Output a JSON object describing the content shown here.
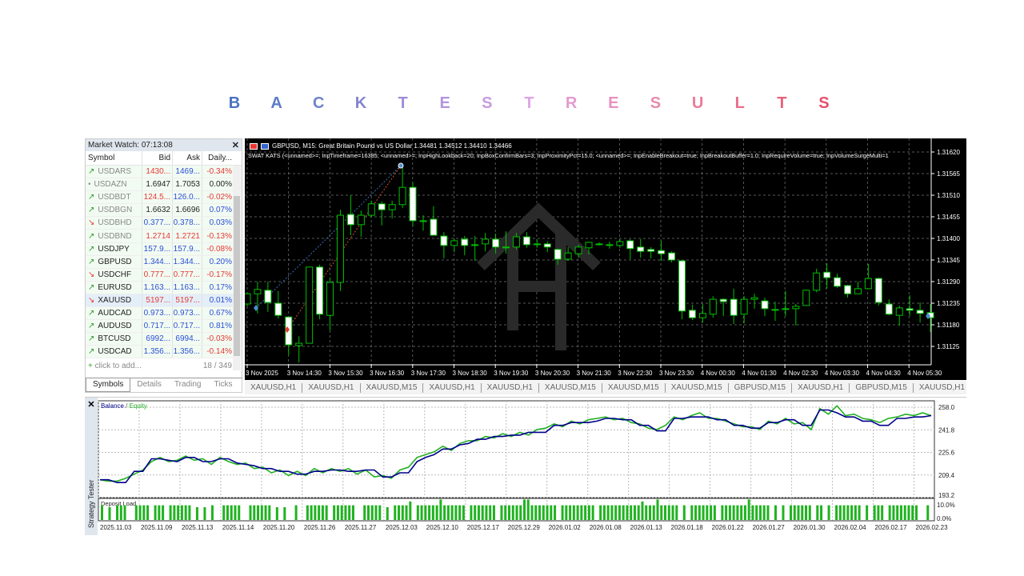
{
  "title": {
    "letters": [
      "B",
      "A",
      "C",
      "K",
      "T",
      "E",
      "S",
      "T",
      "R",
      "E",
      "S",
      "U",
      "L",
      "T",
      "S"
    ],
    "colors": [
      "#4a72c0",
      "#5a7cc8",
      "#6f84cc",
      "#8385d0",
      "#9c8cd6",
      "#b295dc",
      "#c99ae0",
      "#dea4e6",
      "#e39ad0",
      "#e792c0",
      "#e98aae",
      "#ea7c9c",
      "#ea6e8a",
      "#e8607a",
      "#e6506a"
    ]
  },
  "market_watch": {
    "title": "Market Watch: 07:13:08",
    "columns": [
      "Symbol",
      "Bid",
      "Ask",
      "Daily..."
    ],
    "rows": [
      {
        "dir": "up",
        "symbol": "USDARS",
        "bid": "1430...",
        "ask": "1469...",
        "daily": "-0.34%",
        "bid_color": "#e53935",
        "ask_color": "#2a4fd6",
        "daily_color": "#e53935",
        "dim": true
      },
      {
        "dir": "flat",
        "symbol": "USDAZN",
        "bid": "1.6947",
        "ask": "1.7053",
        "daily": "0.00%",
        "bid_color": "#222",
        "ask_color": "#222",
        "daily_color": "#222",
        "dim": true
      },
      {
        "dir": "up",
        "symbol": "USDBDT",
        "bid": "124.5...",
        "ask": "126.0...",
        "daily": "-0.02%",
        "bid_color": "#e53935",
        "ask_color": "#2a4fd6",
        "daily_color": "#e53935",
        "dim": true
      },
      {
        "dir": "up",
        "symbol": "USDBGN",
        "bid": "1.6632",
        "ask": "1.6696",
        "daily": "0.07%",
        "bid_color": "#222",
        "ask_color": "#222",
        "daily_color": "#2a4fd6",
        "dim": true
      },
      {
        "dir": "down",
        "symbol": "USDBHD",
        "bid": "0.377...",
        "ask": "0.378...",
        "daily": "0.03%",
        "bid_color": "#2a4fd6",
        "ask_color": "#2a4fd6",
        "daily_color": "#2a4fd6",
        "dim": true
      },
      {
        "dir": "up",
        "symbol": "USDBND",
        "bid": "1.2714",
        "ask": "1.2721",
        "daily": "-0.13%",
        "bid_color": "#e53935",
        "ask_color": "#e53935",
        "daily_color": "#e53935",
        "dim": true
      },
      {
        "dir": "up",
        "symbol": "USDJPY",
        "bid": "157.9...",
        "ask": "157.9...",
        "daily": "-0.08%",
        "bid_color": "#2a4fd6",
        "ask_color": "#2a4fd6",
        "daily_color": "#e53935"
      },
      {
        "dir": "up",
        "symbol": "GBPUSD",
        "bid": "1.344...",
        "ask": "1.344...",
        "daily": "0.20%",
        "bid_color": "#2a4fd6",
        "ask_color": "#2a4fd6",
        "daily_color": "#2a4fd6"
      },
      {
        "dir": "down",
        "symbol": "USDCHF",
        "bid": "0.777...",
        "ask": "0.777...",
        "daily": "-0.17%",
        "bid_color": "#e53935",
        "ask_color": "#e53935",
        "daily_color": "#e53935"
      },
      {
        "dir": "up",
        "symbol": "EURUSD",
        "bid": "1.163...",
        "ask": "1.163...",
        "daily": "0.17%",
        "bid_color": "#2a4fd6",
        "ask_color": "#2a4fd6",
        "daily_color": "#2a4fd6"
      },
      {
        "dir": "down",
        "symbol": "XAUUSD",
        "bid": "5197...",
        "ask": "5197...",
        "daily": "0.01%",
        "bid_color": "#e53935",
        "ask_color": "#e53935",
        "daily_color": "#2a4fd6",
        "selected": true
      },
      {
        "dir": "up",
        "symbol": "AUDCAD",
        "bid": "0.973...",
        "ask": "0.973...",
        "daily": "0.67%",
        "bid_color": "#2a4fd6",
        "ask_color": "#2a4fd6",
        "daily_color": "#2a4fd6"
      },
      {
        "dir": "up",
        "symbol": "AUDUSD",
        "bid": "0.717...",
        "ask": "0.717...",
        "daily": "0.81%",
        "bid_color": "#2a4fd6",
        "ask_color": "#2a4fd6",
        "daily_color": "#2a4fd6"
      },
      {
        "dir": "up",
        "symbol": "BTCUSD",
        "bid": "6992...",
        "ask": "6994...",
        "daily": "-0.03%",
        "bid_color": "#2a4fd6",
        "ask_color": "#2a4fd6",
        "daily_color": "#e53935"
      },
      {
        "dir": "up",
        "symbol": "USDCAD",
        "bid": "1.356...",
        "ask": "1.356...",
        "daily": "-0.14%",
        "bid_color": "#2a4fd6",
        "ask_color": "#2a4fd6",
        "daily_color": "#e53935"
      }
    ],
    "add_label": "click to add...",
    "count": "18 / 349",
    "tabs": [
      "Symbols",
      "Details",
      "Trading",
      "Ticks"
    ]
  },
  "chart": {
    "header": "GBPUSD, M15:  Great Britain Pound vs US Dollar  1.34481 1.34512 1.34410 1.34466",
    "ea_line": "SWAT KATS (<unnamed>=; InpTimeframe=16385; <unnamed>=; InpHighLookback=20; InpBoxConfirmBars=3; InpProximityPct=15.0; <unnamed>=; InpEnableBreakout=true; InpBreakoutBuffer=1.0; InpRequireVolume=true; InpVolumeSurgeMulti=1",
    "price_ticks": [
      "1.31620",
      "1.31565",
      "1.31510",
      "1.31455",
      "1.31400",
      "1.31345",
      "1.31290",
      "1.31235",
      "1.31180",
      "1.31125"
    ],
    "time_ticks": [
      "3 Nov 2025",
      "3 Nov 14:30",
      "3 Nov 15:30",
      "3 Nov 16:30",
      "3 Nov 17:30",
      "3 Nov 18:30",
      "3 Nov 19:30",
      "3 Nov 20:30",
      "3 Nov 21:30",
      "3 Nov 22:30",
      "3 Nov 23:30",
      "4 Nov 00:30",
      "4 Nov 01:30",
      "4 Nov 02:30",
      "4 Nov 03:30",
      "4 Nov 04:30",
      "4 Nov 05:30"
    ],
    "bull_color": "#00c000",
    "bear_fill": "#ffffff",
    "candles": [
      [
        1.31233,
        1.31263,
        1.31227,
        1.31259
      ],
      [
        1.31259,
        1.3129,
        1.31209,
        1.3127
      ],
      [
        1.31268,
        1.3129,
        1.31213,
        1.31237
      ],
      [
        1.31235,
        1.31266,
        1.31196,
        1.31204
      ],
      [
        1.312,
        1.312,
        1.31103,
        1.31129
      ],
      [
        1.31127,
        1.31151,
        1.31084,
        1.31133
      ],
      [
        1.31133,
        1.31327,
        1.31133,
        1.31327
      ],
      [
        1.31327,
        1.31333,
        1.31194,
        1.31207
      ],
      [
        1.31204,
        1.313,
        1.31166,
        1.31288
      ],
      [
        1.31288,
        1.31473,
        1.31266,
        1.31459
      ],
      [
        1.31461,
        1.3151,
        1.31408,
        1.31435
      ],
      [
        1.31435,
        1.31471,
        1.31404,
        1.31459
      ],
      [
        1.31459,
        1.31496,
        1.31453,
        1.31488
      ],
      [
        1.31488,
        1.31494,
        1.31433,
        1.31473
      ],
      [
        1.31473,
        1.31496,
        1.31451,
        1.31486
      ],
      [
        1.31486,
        1.31585,
        1.31477,
        1.3153
      ],
      [
        1.3153,
        1.31543,
        1.31431,
        1.31445
      ],
      [
        1.31445,
        1.31459,
        1.3142,
        1.31445
      ],
      [
        1.31449,
        1.31482,
        1.31408,
        1.31408
      ],
      [
        1.31406,
        1.31416,
        1.31349,
        1.31382
      ],
      [
        1.31382,
        1.314,
        1.31365,
        1.31394
      ],
      [
        1.31398,
        1.31406,
        1.31357,
        1.31382
      ],
      [
        1.31384,
        1.31406,
        1.31343,
        1.31384
      ],
      [
        1.31386,
        1.31414,
        1.31367,
        1.31398
      ],
      [
        1.31398,
        1.31412,
        1.31361,
        1.31378
      ],
      [
        1.31378,
        1.31418,
        1.31361,
        1.31378
      ],
      [
        1.31378,
        1.31414,
        1.31372,
        1.31404
      ],
      [
        1.31404,
        1.31416,
        1.31376,
        1.31384
      ],
      [
        1.31386,
        1.31398,
        1.31376,
        1.31386
      ],
      [
        1.31386,
        1.31392,
        1.31365,
        1.31378
      ],
      [
        1.31372,
        1.31374,
        1.31333,
        1.31347
      ],
      [
        1.31347,
        1.31378,
        1.31343,
        1.31363
      ],
      [
        1.31361,
        1.31384,
        1.31351,
        1.31378
      ],
      [
        1.31376,
        1.31392,
        1.31359,
        1.3139
      ],
      [
        1.31386,
        1.3139,
        1.31382,
        1.31386
      ],
      [
        1.31384,
        1.31392,
        1.31374,
        1.31384
      ],
      [
        1.31382,
        1.31398,
        1.31376,
        1.31392
      ],
      [
        1.31394,
        1.31398,
        1.31347,
        1.31374
      ],
      [
        1.31378,
        1.31398,
        1.31351,
        1.31367
      ],
      [
        1.31372,
        1.31378,
        1.31349,
        1.31367
      ],
      [
        1.31369,
        1.31394,
        1.31343,
        1.31361
      ],
      [
        1.31363,
        1.31367,
        1.31339,
        1.31345
      ],
      [
        1.31343,
        1.31343,
        1.31194,
        1.31215
      ],
      [
        1.31217,
        1.31231,
        1.31192,
        1.31198
      ],
      [
        1.31198,
        1.31233,
        1.31186,
        1.31209
      ],
      [
        1.31207,
        1.31253,
        1.31198,
        1.31245
      ],
      [
        1.31245,
        1.31247,
        1.31202,
        1.31239
      ],
      [
        1.31245,
        1.31272,
        1.31182,
        1.31204
      ],
      [
        1.31207,
        1.31253,
        1.31184,
        1.31245
      ],
      [
        1.31245,
        1.31259,
        1.31221,
        1.31249
      ],
      [
        1.31241,
        1.31249,
        1.31202,
        1.31221
      ],
      [
        1.31219,
        1.31239,
        1.3119,
        1.31219
      ],
      [
        1.31221,
        1.31266,
        1.31202,
        1.31221
      ],
      [
        1.31221,
        1.31233,
        1.31178,
        1.31227
      ],
      [
        1.31229,
        1.3127,
        1.31229,
        1.31268
      ],
      [
        1.31268,
        1.31323,
        1.31263,
        1.31312
      ],
      [
        1.31314,
        1.31337,
        1.31272,
        1.313
      ],
      [
        1.313,
        1.3131,
        1.31274,
        1.31278
      ],
      [
        1.3128,
        1.31282,
        1.31249,
        1.31259
      ],
      [
        1.31259,
        1.3129,
        1.31259,
        1.31272
      ],
      [
        1.31272,
        1.31335,
        1.31272,
        1.31298
      ],
      [
        1.31298,
        1.313,
        1.31229,
        1.31237
      ],
      [
        1.31233,
        1.31245,
        1.31204,
        1.31207
      ],
      [
        1.31204,
        1.31229,
        1.31178,
        1.31223
      ],
      [
        1.31221,
        1.31255,
        1.31202,
        1.31217
      ],
      [
        1.31217,
        1.31237,
        1.31186,
        1.31209
      ],
      [
        1.31211,
        1.31233,
        1.31162,
        1.31198
      ]
    ],
    "tabs": [
      "XAUUSD,H1",
      "XAUUSD,H1",
      "XAUUSD,M15",
      "XAUUSD,H1",
      "XAUUSD,H1",
      "XAUUSD,M15",
      "XAUUSD,M15",
      "XAUUSD,M15",
      "GBPUSD,M15",
      "XAUUSD,H1",
      "GBPUSD,M15",
      "XAUUSD,H1"
    ]
  },
  "tester": {
    "panel_label": "Strategy Tester",
    "legend_balance": "Balance",
    "legend_sep": " / ",
    "legend_equity": "Equity",
    "balance_color": "#00008b",
    "equity_color": "#22b022",
    "y_ticks": [
      "258.0",
      "241.8",
      "225.6",
      "209.4",
      "193.2"
    ],
    "ylim": [
      193.2,
      258.0
    ],
    "balance": [
      206,
      206,
      204,
      204,
      212,
      212,
      221,
      221,
      220,
      219,
      222,
      222,
      219,
      219,
      221,
      221,
      218,
      217,
      216,
      214,
      214,
      212,
      212,
      210,
      210,
      212,
      212,
      213,
      213,
      212,
      212,
      213,
      213,
      208,
      208,
      211,
      211,
      219,
      222,
      224,
      228,
      228,
      231,
      232,
      235,
      235,
      237,
      237,
      238,
      238,
      240,
      240,
      240,
      245,
      245,
      247,
      247,
      247,
      248,
      250,
      250,
      249,
      249,
      245,
      245,
      241,
      241,
      250,
      250,
      251,
      251,
      251,
      249,
      249,
      245,
      245,
      243,
      243,
      247,
      247,
      249,
      249,
      245,
      245,
      256,
      256,
      254,
      251,
      251,
      248,
      248,
      245,
      245,
      250,
      250,
      251,
      251,
      252
    ],
    "equity": [
      206,
      205,
      205,
      207,
      210,
      213,
      219,
      222,
      219,
      220,
      223,
      220,
      221,
      217,
      222,
      219,
      217,
      218,
      214,
      215,
      211,
      213,
      209,
      212,
      209,
      214,
      211,
      214,
      212,
      214,
      210,
      213,
      208,
      209,
      207,
      213,
      215,
      222,
      224,
      226,
      230,
      227,
      232,
      234,
      234,
      237,
      236,
      239,
      237,
      240,
      238,
      242,
      243,
      246,
      244,
      248,
      246,
      249,
      250,
      251,
      249,
      250,
      247,
      246,
      243,
      242,
      245,
      251,
      249,
      252,
      254,
      250,
      250,
      248,
      246,
      244,
      244,
      242,
      248,
      246,
      250,
      246,
      247,
      242,
      257,
      253,
      259,
      252,
      253,
      250,
      249,
      247,
      250,
      251,
      253,
      252,
      254,
      252
    ],
    "load_title": "Deposit Load",
    "load_ticks": [
      "10.0%",
      "0.0%"
    ],
    "load": [
      6,
      0,
      5,
      0,
      6,
      6,
      6,
      0,
      0,
      6,
      6,
      6,
      6,
      0,
      6,
      6,
      6,
      0,
      6,
      6,
      6,
      6,
      6,
      6,
      0,
      5,
      0,
      5,
      0,
      6,
      0,
      0,
      6,
      6,
      6,
      6,
      6,
      0,
      0,
      6,
      6,
      6,
      6,
      6,
      6,
      0,
      5,
      0,
      5,
      0,
      0,
      6,
      0,
      0,
      6,
      6,
      6,
      6,
      6,
      6,
      0,
      6,
      6,
      6,
      6,
      6,
      6,
      0,
      0,
      6,
      6,
      6,
      6,
      6,
      0,
      5,
      0,
      6,
      6,
      6,
      6,
      8,
      0,
      6,
      6,
      6,
      6,
      6,
      6,
      9,
      6,
      6,
      6,
      6,
      6,
      6,
      0,
      6,
      6,
      6,
      6,
      6,
      6,
      6,
      0,
      6,
      6,
      6,
      6,
      6,
      6,
      9,
      9,
      6,
      6,
      6,
      6,
      6,
      6,
      6,
      0,
      6,
      6,
      6,
      6,
      6,
      6,
      6,
      6,
      6,
      0,
      6,
      6,
      6,
      6,
      6,
      6,
      6,
      6,
      6,
      6,
      6,
      8,
      6,
      6,
      6,
      9,
      6,
      6,
      6,
      6,
      6,
      0,
      6,
      0,
      6,
      6,
      6,
      6,
      6,
      6,
      6,
      0,
      6,
      6,
      6,
      6,
      6,
      6,
      6,
      9,
      6,
      6,
      6,
      6,
      6,
      0,
      6,
      0,
      6,
      0,
      6,
      6,
      6,
      6,
      6,
      6,
      0,
      6,
      6,
      0,
      6,
      0,
      6,
      6,
      6,
      6,
      6,
      6,
      6,
      0,
      6,
      0,
      6,
      6,
      6,
      0,
      6,
      6,
      6,
      6,
      6,
      6,
      6,
      6,
      0,
      0,
      6
    ],
    "dates": [
      "2025.11.03",
      "2025.11.09",
      "2025.11.13",
      "2025.11.14",
      "2025.11.20",
      "2025.11.26",
      "2025.11.27",
      "2025.12.03",
      "2025.12.10",
      "2025.12.17",
      "2025.12.29",
      "2026.01.02",
      "2026.01.08",
      "2026.01.13",
      "2026.01.18",
      "2026.01.22",
      "2026.01.27",
      "2026.01.30",
      "2026.02.04",
      "2026.02.17",
      "2026.02.23"
    ]
  }
}
